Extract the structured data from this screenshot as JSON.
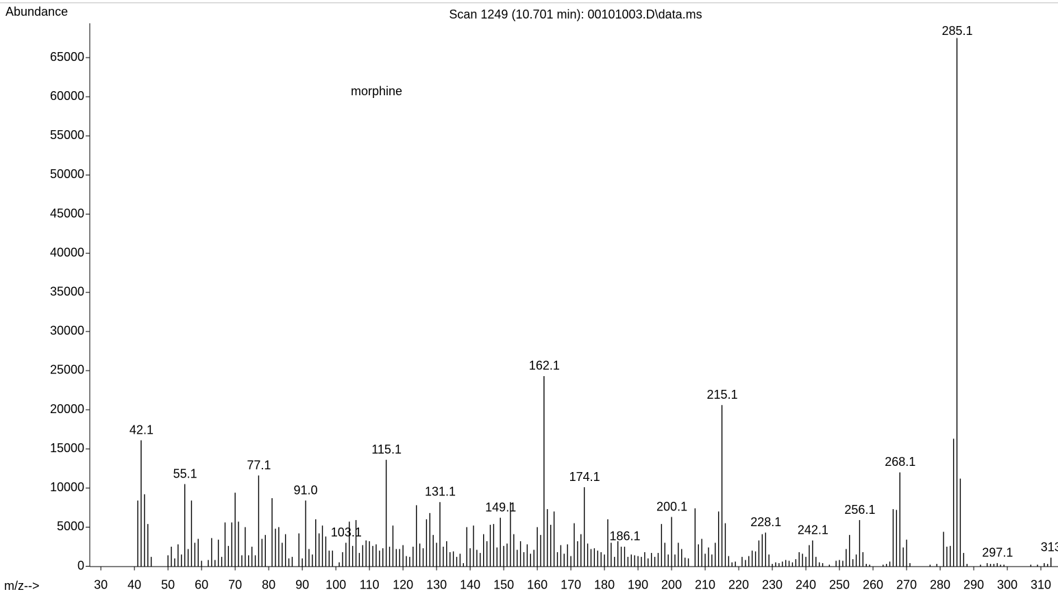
{
  "chart_data": {
    "type": "bar",
    "title": "Scan 1249 (10.701 min): 00101003.D\\data.ms",
    "ylabel": "Abundance",
    "xlabel": "m/z-->",
    "annotation": "morphine",
    "color": "#000000",
    "xlim": [
      26.7,
      315.1
    ],
    "ylim": [
      0,
      69300
    ],
    "xticks": [
      30,
      40,
      50,
      60,
      70,
      80,
      90,
      100,
      110,
      120,
      130,
      140,
      150,
      160,
      170,
      180,
      190,
      200,
      210,
      220,
      230,
      240,
      250,
      260,
      270,
      280,
      290,
      300,
      310
    ],
    "yticks": [
      0,
      5000,
      10000,
      15000,
      20000,
      25000,
      30000,
      35000,
      40000,
      45000,
      50000,
      55000,
      60000,
      65000
    ],
    "x": [
      41,
      42,
      43,
      44,
      45,
      50,
      51,
      52,
      53,
      54,
      55,
      56,
      57,
      58,
      59,
      60,
      62,
      63,
      64,
      65,
      66,
      67,
      68,
      69,
      70,
      71,
      72,
      73,
      74,
      75,
      76,
      77,
      78,
      79,
      81,
      82,
      83,
      84,
      85,
      86,
      87,
      89,
      90,
      91,
      92,
      93,
      94,
      95,
      96,
      97,
      98,
      99,
      101,
      102,
      103,
      104,
      105,
      106,
      107,
      108,
      109,
      110,
      111,
      112,
      113,
      114,
      115,
      116,
      117,
      118,
      119,
      120,
      121,
      122,
      123,
      124,
      125,
      126,
      127,
      128,
      129,
      130,
      131,
      132,
      133,
      134,
      135,
      136,
      137,
      138,
      139,
      140,
      141,
      142,
      143,
      144,
      145,
      146,
      147,
      148,
      149,
      150,
      151,
      152,
      153,
      154,
      155,
      156,
      157,
      158,
      159,
      160,
      161,
      162,
      163,
      164,
      165,
      166,
      167,
      168,
      169,
      170,
      171,
      172,
      173,
      174,
      175,
      176,
      177,
      178,
      179,
      180,
      181,
      182,
      183,
      184,
      185,
      186,
      187,
      188,
      189,
      190,
      191,
      192,
      193,
      194,
      195,
      196,
      197,
      198,
      199,
      200,
      201,
      202,
      203,
      204,
      205,
      207,
      208,
      209,
      210,
      211,
      212,
      213,
      214,
      215,
      216,
      217,
      218,
      219,
      221,
      222,
      223,
      224,
      225,
      226,
      227,
      228,
      229,
      230,
      231,
      232,
      233,
      234,
      235,
      236,
      237,
      238,
      239,
      240,
      241,
      242,
      243,
      244,
      245,
      247,
      249,
      250,
      251,
      252,
      253,
      254,
      255,
      256,
      257,
      258,
      259,
      263,
      264,
      265,
      266,
      267,
      268,
      269,
      270,
      271,
      277,
      279,
      281,
      282,
      283,
      284,
      285,
      286,
      287,
      288,
      292,
      294,
      295,
      296,
      297,
      298,
      299,
      307,
      309,
      311,
      312,
      313
    ],
    "values": [
      8400,
      16100,
      9200,
      5400,
      1200,
      1400,
      2500,
      1000,
      2800,
      1500,
      10500,
      2200,
      8400,
      3000,
      3500,
      700,
      800,
      3600,
      800,
      3400,
      1200,
      5600,
      2600,
      5600,
      9400,
      5700,
      1400,
      5000,
      1400,
      2500,
      1400,
      11600,
      3500,
      4000,
      8700,
      4800,
      5000,
      3000,
      4100,
      1000,
      1200,
      4200,
      1000,
      8400,
      2200,
      1500,
      6000,
      4200,
      5200,
      3800,
      2000,
      2000,
      500,
      1800,
      3000,
      5700,
      2600,
      5900,
      1700,
      2700,
      3300,
      3200,
      2600,
      2800,
      2000,
      2300,
      13600,
      2500,
      5200,
      2200,
      2200,
      2700,
      1300,
      1200,
      2500,
      7800,
      2900,
      2300,
      6000,
      6800,
      4000,
      3000,
      8200,
      2500,
      3200,
      1800,
      1900,
      1200,
      1600,
      400,
      5000,
      2300,
      5200,
      2100,
      1700,
      4100,
      3200,
      5300,
      5400,
      2400,
      6200,
      2600,
      2900,
      8200,
      4100,
      2100,
      3200,
      1800,
      2800,
      1600,
      2100,
      5000,
      4000,
      24300,
      7300,
      5300,
      7000,
      1800,
      2700,
      1600,
      2800,
      1300,
      5500,
      3200,
      4100,
      10100,
      2900,
      2200,
      2300,
      2000,
      1800,
      1500,
      6000,
      3000,
      1200,
      3200,
      2500,
      2500,
      1200,
      1500,
      1400,
      1300,
      1200,
      1800,
      1000,
      1700,
      1200,
      1700,
      5400,
      3000,
      1500,
      6300,
      1500,
      3000,
      2200,
      1100,
      1000,
      7400,
      2800,
      3500,
      1600,
      2400,
      1500,
      3000,
      7000,
      20600,
      5500,
      1300,
      500,
      600,
      1200,
      800,
      1300,
      2000,
      1900,
      3300,
      4100,
      4300,
      1500,
      300,
      500,
      400,
      600,
      800,
      700,
      500,
      900,
      1800,
      1600,
      1200,
      2700,
      3300,
      1200,
      500,
      400,
      200,
      700,
      800,
      700,
      2200,
      4000,
      900,
      1500,
      5900,
      1800,
      300,
      200,
      200,
      300,
      600,
      7300,
      7200,
      12000,
      2400,
      3400,
      400,
      200,
      300,
      4400,
      2500,
      2600,
      16300,
      67500,
      11200,
      1700,
      300,
      200,
      400,
      300,
      300,
      400,
      200,
      200,
      200,
      200,
      400,
      300,
      1100
    ],
    "peak_labels": [
      42.1,
      55.1,
      77.1,
      {
        "value": 91,
        "label": "91.0"
      },
      103.1,
      115.1,
      131.1,
      149.1,
      162.1,
      174.1,
      186.1,
      200.1,
      215.1,
      228.1,
      242.1,
      256.1,
      268.1,
      285.1,
      297.1,
      313
    ]
  }
}
